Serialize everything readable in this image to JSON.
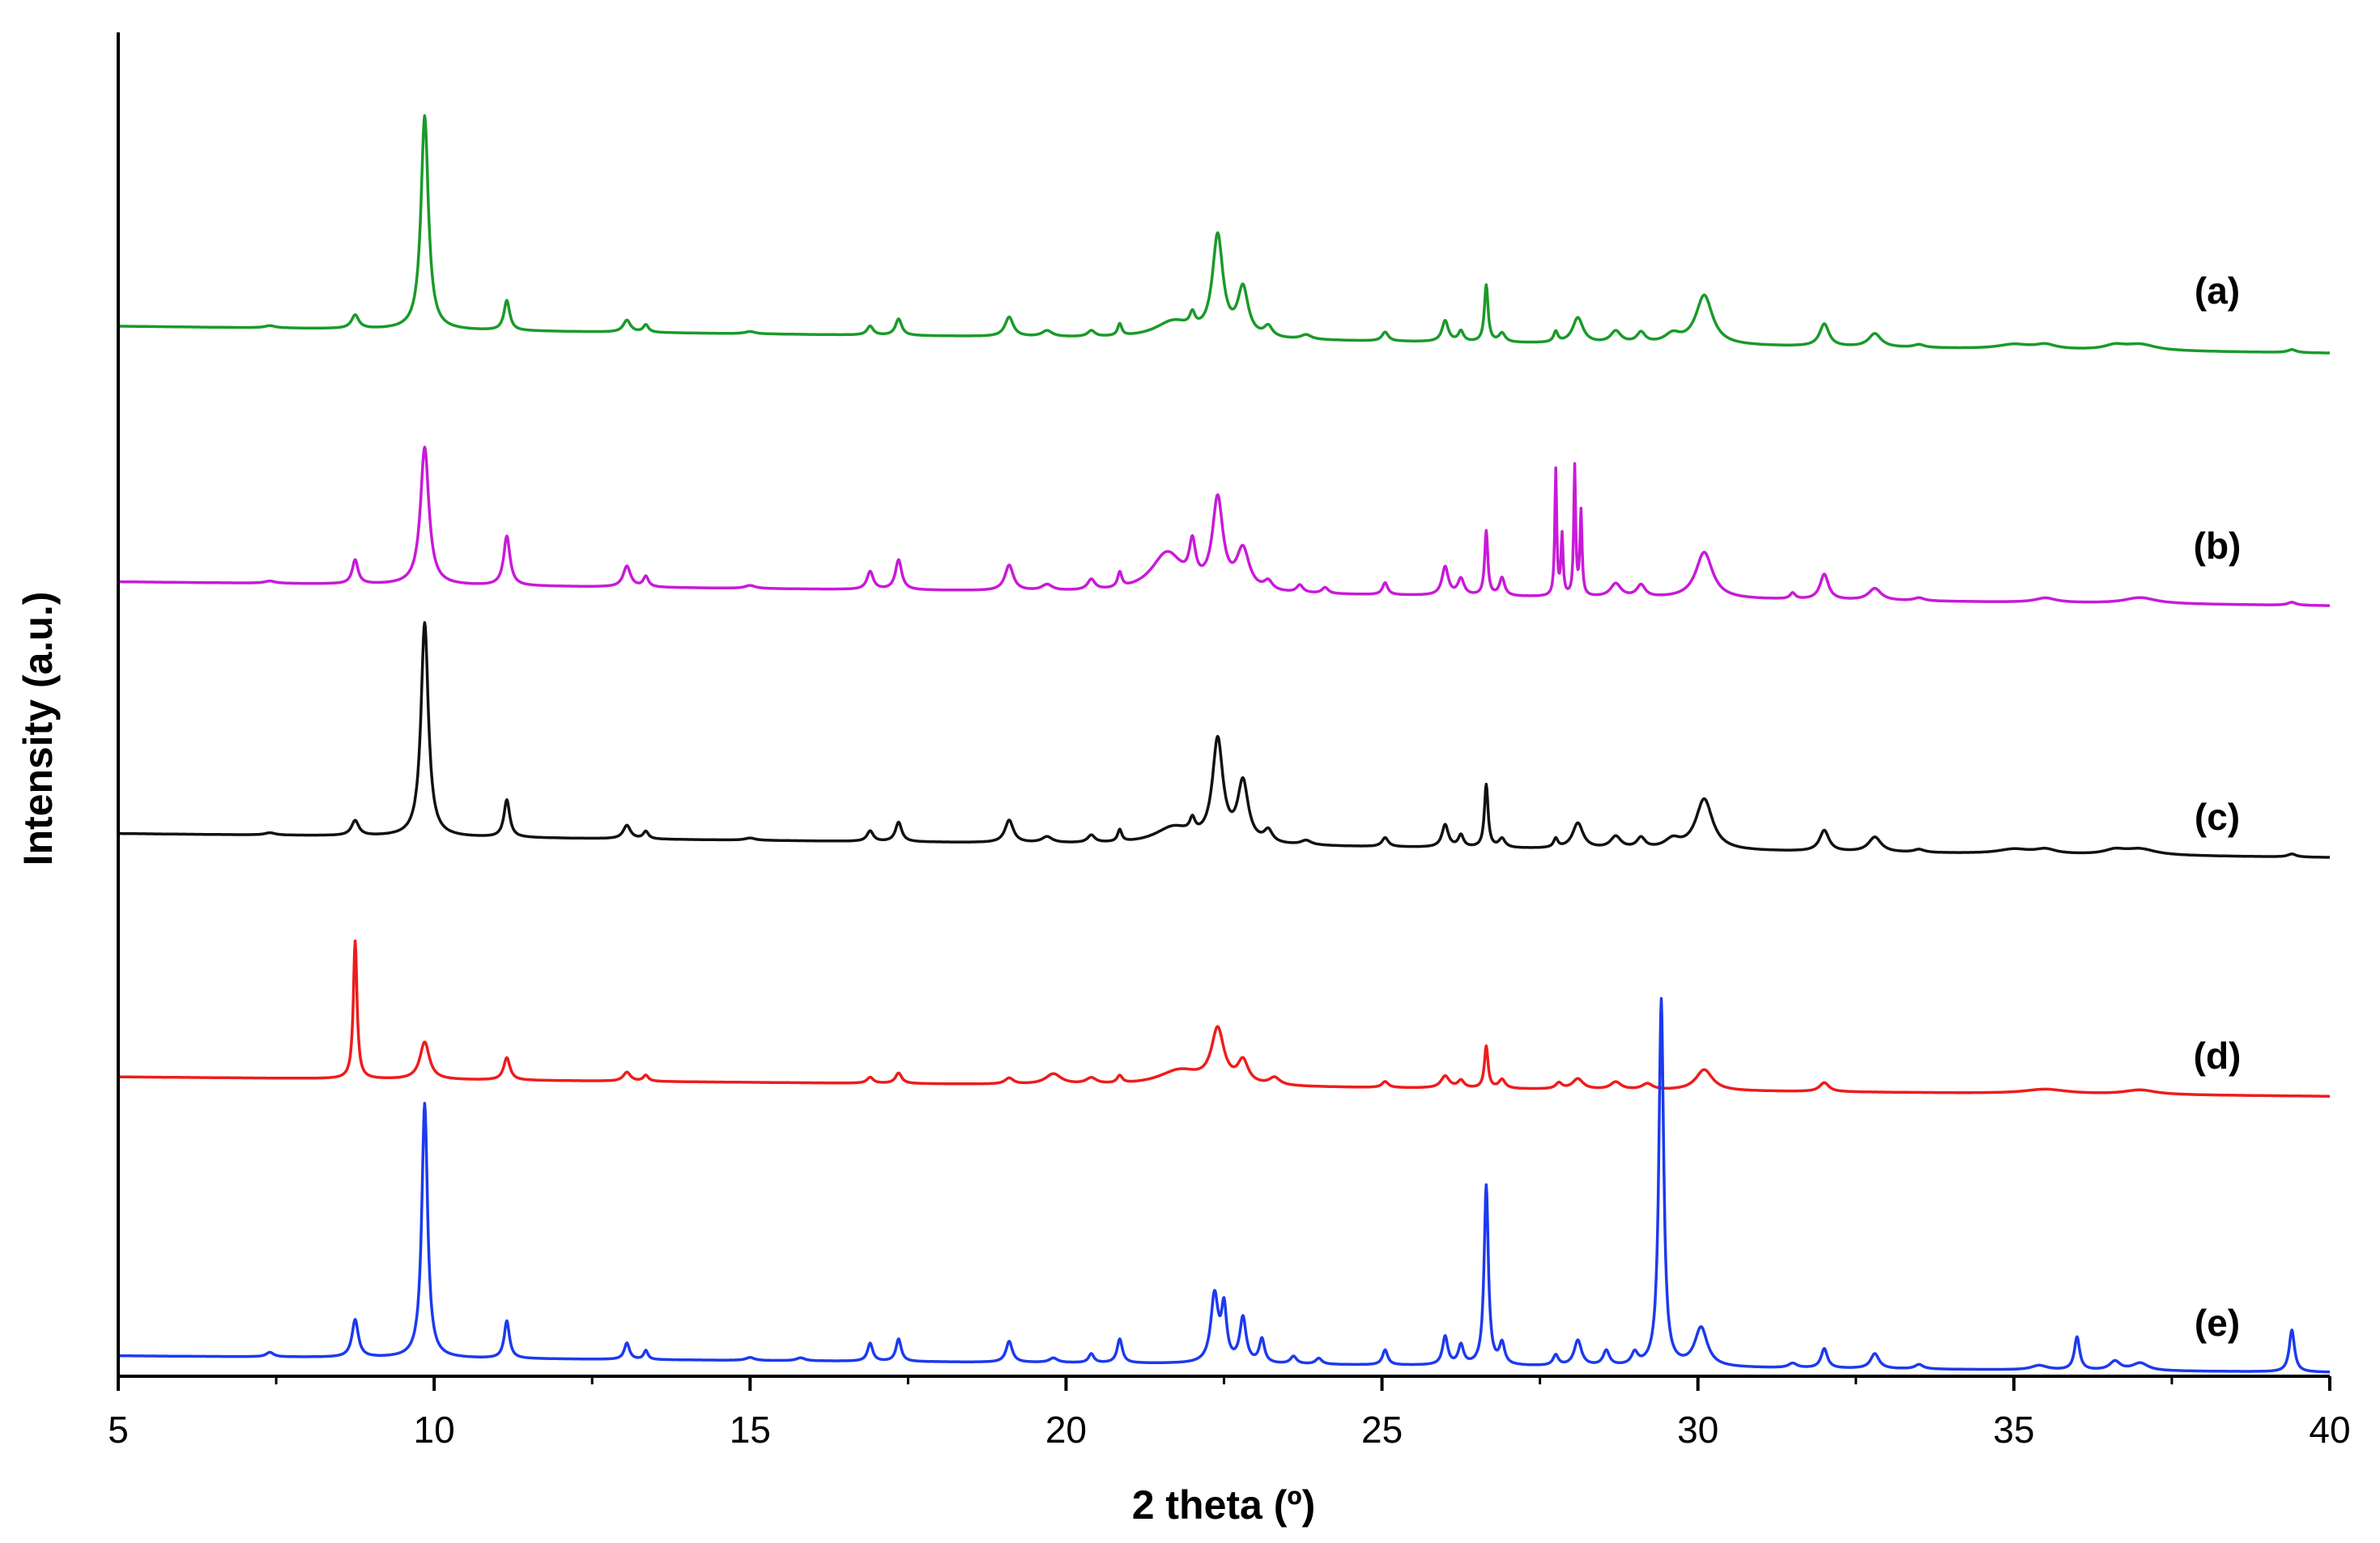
{
  "chart_data": {
    "type": "line",
    "title": "",
    "xlabel": "2 theta (º)",
    "ylabel": "Intensity (a.u.)",
    "xlim": [
      5,
      40
    ],
    "x_ticks": [
      "5",
      "10",
      "15",
      "20",
      "25",
      "30",
      "35",
      "40"
    ],
    "y_ticks": [],
    "grid": false,
    "legend": "none",
    "series": [
      {
        "name": "(a)",
        "color": "#1a9a2a",
        "baseline_start": 20,
        "baseline_end": 2,
        "peaks": [
          [
            7.4,
            1.5,
            0.1
          ],
          [
            8.75,
            9,
            0.07
          ],
          [
            9.85,
            143,
            0.07
          ],
          [
            11.15,
            20,
            0.055
          ],
          [
            13.05,
            8,
            0.07
          ],
          [
            13.35,
            5,
            0.05
          ],
          [
            15.0,
            1.5,
            0.1
          ],
          [
            16.9,
            6,
            0.06
          ],
          [
            17.35,
            11,
            0.06
          ],
          [
            19.1,
            13,
            0.08
          ],
          [
            19.7,
            4,
            0.1
          ],
          [
            20.4,
            4,
            0.07
          ],
          [
            20.85,
            8,
            0.04
          ],
          [
            21.7,
            11,
            0.35
          ],
          [
            22.0,
            9,
            0.05
          ],
          [
            22.4,
            67,
            0.1
          ],
          [
            22.8,
            32,
            0.1
          ],
          [
            23.2,
            7,
            0.08
          ],
          [
            23.8,
            3,
            0.1
          ],
          [
            25.05,
            6,
            0.06
          ],
          [
            26.0,
            14,
            0.06
          ],
          [
            26.25,
            7,
            0.05
          ],
          [
            26.65,
            38,
            0.035
          ],
          [
            26.9,
            6,
            0.06
          ],
          [
            27.75,
            7,
            0.04
          ],
          [
            28.1,
            17,
            0.1
          ],
          [
            28.7,
            8,
            0.1
          ],
          [
            29.1,
            7,
            0.08
          ],
          [
            29.6,
            6,
            0.15
          ],
          [
            30.1,
            33,
            0.16
          ],
          [
            32.0,
            15,
            0.09
          ],
          [
            32.8,
            9,
            0.12
          ],
          [
            33.5,
            2,
            0.1
          ],
          [
            35.0,
            3,
            0.3
          ],
          [
            35.5,
            3,
            0.2
          ],
          [
            36.6,
            3,
            0.2
          ],
          [
            37.0,
            4,
            0.3
          ],
          [
            39.4,
            2,
            0.08
          ]
        ]
      },
      {
        "name": "(b)",
        "color": "#c81ad8",
        "baseline_start": 18,
        "baseline_end": 2,
        "peaks": [
          [
            7.4,
            1.5,
            0.1
          ],
          [
            8.75,
            16,
            0.055
          ],
          [
            9.85,
            92,
            0.08
          ],
          [
            11.15,
            33,
            0.06
          ],
          [
            13.05,
            14,
            0.07
          ],
          [
            13.35,
            7,
            0.05
          ],
          [
            15.0,
            2,
            0.1
          ],
          [
            16.9,
            12,
            0.06
          ],
          [
            17.35,
            20,
            0.06
          ],
          [
            19.1,
            17,
            0.08
          ],
          [
            19.7,
            4,
            0.1
          ],
          [
            20.4,
            7,
            0.07
          ],
          [
            20.85,
            10,
            0.04
          ],
          [
            21.6,
            26,
            0.3
          ],
          [
            22.0,
            25,
            0.06
          ],
          [
            22.4,
            60,
            0.1
          ],
          [
            22.8,
            27,
            0.12
          ],
          [
            23.2,
            6,
            0.08
          ],
          [
            23.7,
            5,
            0.06
          ],
          [
            24.1,
            4,
            0.06
          ],
          [
            25.05,
            8,
            0.05
          ],
          [
            26.0,
            19,
            0.06
          ],
          [
            26.25,
            11,
            0.06
          ],
          [
            26.65,
            43,
            0.03
          ],
          [
            26.9,
            12,
            0.05
          ],
          [
            27.75,
            84,
            0.018
          ],
          [
            27.85,
            40,
            0.02
          ],
          [
            28.05,
            86,
            0.018
          ],
          [
            28.15,
            56,
            0.02
          ],
          [
            28.7,
            9,
            0.1
          ],
          [
            29.1,
            8,
            0.08
          ],
          [
            30.1,
            31,
            0.16
          ],
          [
            32.0,
            17,
            0.08
          ],
          [
            32.8,
            8,
            0.12
          ],
          [
            33.5,
            2,
            0.1
          ],
          [
            31.5,
            4,
            0.05
          ],
          [
            35.5,
            3,
            0.2
          ],
          [
            37.0,
            4,
            0.3
          ],
          [
            39.4,
            2,
            0.08
          ]
        ]
      },
      {
        "name": "(c)",
        "color": "#111111",
        "baseline_start": 18,
        "baseline_end": 2,
        "peaks": [
          [
            7.4,
            1.5,
            0.1
          ],
          [
            8.75,
            10,
            0.07
          ],
          [
            9.85,
            143,
            0.07
          ],
          [
            11.15,
            25,
            0.055
          ],
          [
            13.05,
            9,
            0.07
          ],
          [
            13.35,
            5,
            0.05
          ],
          [
            15.0,
            1.5,
            0.1
          ],
          [
            16.9,
            7,
            0.06
          ],
          [
            17.35,
            13,
            0.06
          ],
          [
            19.1,
            15,
            0.08
          ],
          [
            19.7,
            4,
            0.1
          ],
          [
            20.4,
            5,
            0.07
          ],
          [
            20.85,
            8,
            0.04
          ],
          [
            21.7,
            11,
            0.35
          ],
          [
            22.0,
            9,
            0.05
          ],
          [
            22.4,
            68,
            0.1
          ],
          [
            22.8,
            40,
            0.1
          ],
          [
            23.2,
            8,
            0.08
          ],
          [
            23.8,
            3,
            0.1
          ],
          [
            25.05,
            6,
            0.06
          ],
          [
            26.0,
            15,
            0.06
          ],
          [
            26.25,
            8,
            0.05
          ],
          [
            26.65,
            42,
            0.035
          ],
          [
            26.9,
            6,
            0.06
          ],
          [
            27.75,
            6,
            0.04
          ],
          [
            28.1,
            17,
            0.1
          ],
          [
            28.7,
            8,
            0.1
          ],
          [
            29.1,
            7,
            0.08
          ],
          [
            29.6,
            6,
            0.15
          ],
          [
            30.1,
            34,
            0.16
          ],
          [
            32.0,
            14,
            0.09
          ],
          [
            32.8,
            10,
            0.12
          ],
          [
            33.5,
            2,
            0.1
          ],
          [
            35.0,
            3,
            0.3
          ],
          [
            35.5,
            3,
            0.2
          ],
          [
            36.6,
            3,
            0.2
          ],
          [
            37.0,
            4,
            0.3
          ],
          [
            39.4,
            2,
            0.08
          ]
        ]
      },
      {
        "name": "(d)",
        "color": "#ee1c1c",
        "baseline_start": 15,
        "baseline_end": 2,
        "peaks": [
          [
            8.75,
            92,
            0.035
          ],
          [
            9.85,
            25,
            0.09
          ],
          [
            11.15,
            15,
            0.06
          ],
          [
            13.05,
            6,
            0.07
          ],
          [
            13.35,
            4,
            0.05
          ],
          [
            16.9,
            4,
            0.06
          ],
          [
            17.35,
            7,
            0.06
          ],
          [
            19.1,
            4,
            0.08
          ],
          [
            19.8,
            7,
            0.15
          ],
          [
            20.4,
            4,
            0.1
          ],
          [
            20.85,
            5,
            0.05
          ],
          [
            21.8,
            10,
            0.4
          ],
          [
            22.4,
            36,
            0.12
          ],
          [
            22.8,
            15,
            0.1
          ],
          [
            23.3,
            5,
            0.1
          ],
          [
            25.05,
            4,
            0.06
          ],
          [
            26.0,
            8,
            0.08
          ],
          [
            26.25,
            5,
            0.06
          ],
          [
            26.65,
            28,
            0.035
          ],
          [
            26.9,
            6,
            0.06
          ],
          [
            27.8,
            4,
            0.06
          ],
          [
            28.1,
            7,
            0.1
          ],
          [
            28.7,
            5,
            0.1
          ],
          [
            29.2,
            4,
            0.1
          ],
          [
            30.1,
            14,
            0.16
          ],
          [
            32.0,
            6,
            0.09
          ],
          [
            35.5,
            3,
            0.4
          ],
          [
            37.0,
            3,
            0.3
          ]
        ]
      },
      {
        "name": "(e)",
        "color": "#1c3aee",
        "baseline_start": 12,
        "baseline_end": 1,
        "peaks": [
          [
            7.4,
            3,
            0.07
          ],
          [
            8.75,
            25,
            0.06
          ],
          [
            9.85,
            170,
            0.055
          ],
          [
            11.15,
            25,
            0.05
          ],
          [
            13.05,
            11,
            0.05
          ],
          [
            13.35,
            6,
            0.04
          ],
          [
            15.0,
            2,
            0.08
          ],
          [
            15.8,
            2,
            0.08
          ],
          [
            16.9,
            12,
            0.05
          ],
          [
            17.35,
            15,
            0.05
          ],
          [
            19.1,
            14,
            0.06
          ],
          [
            19.8,
            3,
            0.08
          ],
          [
            20.4,
            6,
            0.05
          ],
          [
            20.85,
            16,
            0.05
          ],
          [
            22.35,
            45,
            0.07
          ],
          [
            22.5,
            35,
            0.05
          ],
          [
            22.8,
            30,
            0.06
          ],
          [
            23.1,
            16,
            0.05
          ],
          [
            23.6,
            5,
            0.06
          ],
          [
            24.0,
            4,
            0.06
          ],
          [
            25.05,
            10,
            0.05
          ],
          [
            26.0,
            19,
            0.05
          ],
          [
            26.25,
            13,
            0.05
          ],
          [
            26.65,
            120,
            0.04
          ],
          [
            26.9,
            14,
            0.05
          ],
          [
            27.75,
            7,
            0.05
          ],
          [
            28.1,
            17,
            0.07
          ],
          [
            28.55,
            10,
            0.06
          ],
          [
            29.0,
            8,
            0.06
          ],
          [
            29.42,
            245,
            0.045
          ],
          [
            30.05,
            26,
            0.12
          ],
          [
            31.5,
            3,
            0.08
          ],
          [
            32.0,
            13,
            0.06
          ],
          [
            32.8,
            10,
            0.08
          ],
          [
            33.5,
            3,
            0.08
          ],
          [
            35.4,
            3,
            0.15
          ],
          [
            36.0,
            22,
            0.05
          ],
          [
            36.6,
            6,
            0.1
          ],
          [
            37.0,
            5,
            0.15
          ],
          [
            39.4,
            28,
            0.05
          ]
        ]
      }
    ]
  }
}
